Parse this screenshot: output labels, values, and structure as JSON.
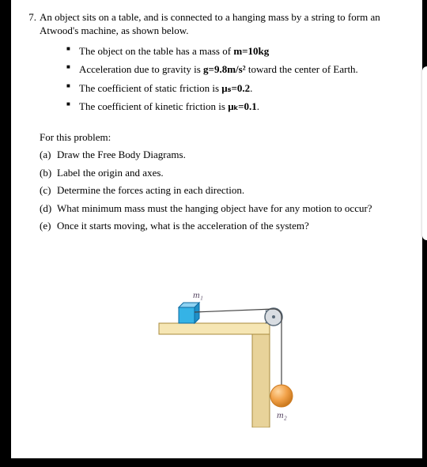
{
  "problem": {
    "number": "7.",
    "intro": "An object sits on a table, and is connected to a hanging mass by a string to form an Atwood's machine, as shown below.",
    "given": [
      {
        "pre": "The object on the table has a mass of ",
        "bold": "m=10kg",
        "post": ""
      },
      {
        "pre": "Acceleration due to gravity is ",
        "bold": "g=9.8m/s²",
        "post": " toward the center of Earth."
      },
      {
        "pre": "The coefficient of static friction is ",
        "bold": "μₛ=0.2",
        "post": "."
      },
      {
        "pre": "The coefficient of kinetic friction is ",
        "bold": "μₖ=0.1",
        "post": "."
      }
    ],
    "lead": "For this problem:",
    "parts": [
      {
        "label": "(a)",
        "text": "Draw the Free Body Diagrams."
      },
      {
        "label": "(b)",
        "text": "Label the origin and axes."
      },
      {
        "label": "(c)",
        "text": "Determine the forces acting in each direction."
      },
      {
        "label": "(d)",
        "text": "What minimum mass must the hanging object have for any motion to occur?"
      },
      {
        "label": "(e)",
        "text": "Once it starts moving, what is the acceleration of the system?"
      }
    ]
  },
  "figure": {
    "m1_label": "m₁",
    "m2_label": "m₂",
    "colors": {
      "table_fill": "#f6e6b4",
      "table_stroke": "#a88b3d",
      "table_side_fill": "#e8d39a",
      "block_top": "#8fd2f2",
      "block_front": "#35b3e6",
      "block_side": "#1f8fc7",
      "block_stroke": "#0c6aa0",
      "pulley_fill": "#d9dde2",
      "pulley_stroke": "#5a6a78",
      "string": "#444",
      "ball_light": "#ffd7a0",
      "ball_mid": "#f2a24a",
      "ball_dark": "#cc7a1f",
      "label_text": "#5a4a66"
    }
  }
}
